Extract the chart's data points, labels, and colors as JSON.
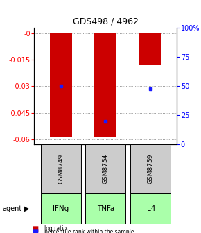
{
  "title": "GDS498 / 4962",
  "samples": [
    "GSM8749",
    "GSM8754",
    "GSM8759"
  ],
  "agents": [
    "IFNg",
    "TNFa",
    "IL4"
  ],
  "log_ratios": [
    -0.059,
    -0.059,
    -0.018
  ],
  "percentile_ranks": [
    50,
    20,
    48
  ],
  "ylim_left": [
    -0.063,
    0.003
  ],
  "left_ticks": [
    0,
    -0.015,
    -0.03,
    -0.045,
    -0.06
  ],
  "left_tick_labels": [
    "-0",
    "-0.015",
    "-0.03",
    "-0.045",
    "-0.06"
  ],
  "right_ticks": [
    0,
    25,
    50,
    75,
    100
  ],
  "right_tick_labels": [
    "0",
    "25",
    "50",
    "75",
    "100%"
  ],
  "bar_color": "#cc0000",
  "dot_color": "#1a1aff",
  "sample_box_color": "#cccccc",
  "agent_box_color": "#aaffaa",
  "legend_log_color": "#cc0000",
  "legend_dot_color": "#1a1aff",
  "bar_width": 0.5,
  "grid_linestyle": ":",
  "grid_color": "#555555",
  "spine_color": "#000000"
}
